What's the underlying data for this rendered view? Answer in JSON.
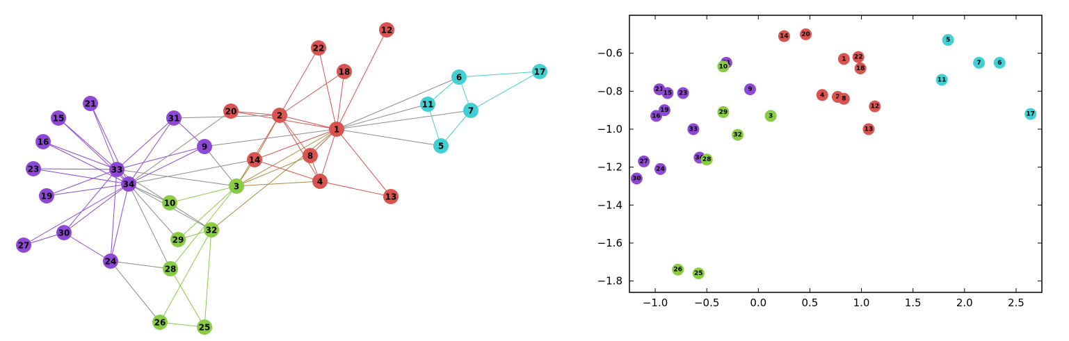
{
  "colors": {
    "red": "#d9534f",
    "cyan": "#42cfd4",
    "purple": "#8f48d6",
    "green": "#88cc44",
    "edge_gray": "#8c8c8c",
    "edge_mixed": "#b0893f"
  },
  "chart_data": [
    {
      "type": "network",
      "nodes": [
        {
          "id": "1",
          "community": "red"
        },
        {
          "id": "2",
          "community": "red"
        },
        {
          "id": "3",
          "community": "green"
        },
        {
          "id": "4",
          "community": "red"
        },
        {
          "id": "5",
          "community": "cyan"
        },
        {
          "id": "6",
          "community": "cyan"
        },
        {
          "id": "7",
          "community": "cyan"
        },
        {
          "id": "8",
          "community": "red"
        },
        {
          "id": "9",
          "community": "purple"
        },
        {
          "id": "10",
          "community": "green"
        },
        {
          "id": "11",
          "community": "cyan"
        },
        {
          "id": "12",
          "community": "red"
        },
        {
          "id": "13",
          "community": "red"
        },
        {
          "id": "14",
          "community": "red"
        },
        {
          "id": "15",
          "community": "purple"
        },
        {
          "id": "16",
          "community": "purple"
        },
        {
          "id": "17",
          "community": "cyan"
        },
        {
          "id": "18",
          "community": "red"
        },
        {
          "id": "19",
          "community": "purple"
        },
        {
          "id": "20",
          "community": "red"
        },
        {
          "id": "21",
          "community": "purple"
        },
        {
          "id": "22",
          "community": "red"
        },
        {
          "id": "23",
          "community": "purple"
        },
        {
          "id": "24",
          "community": "purple"
        },
        {
          "id": "25",
          "community": "green"
        },
        {
          "id": "26",
          "community": "green"
        },
        {
          "id": "27",
          "community": "purple"
        },
        {
          "id": "28",
          "community": "green"
        },
        {
          "id": "29",
          "community": "green"
        },
        {
          "id": "30",
          "community": "purple"
        },
        {
          "id": "31",
          "community": "purple"
        },
        {
          "id": "32",
          "community": "green"
        },
        {
          "id": "33",
          "community": "purple"
        },
        {
          "id": "34",
          "community": "purple"
        }
      ],
      "edges": [
        [
          "1",
          "2"
        ],
        [
          "1",
          "3"
        ],
        [
          "1",
          "4"
        ],
        [
          "1",
          "5"
        ],
        [
          "1",
          "6"
        ],
        [
          "1",
          "7"
        ],
        [
          "1",
          "8"
        ],
        [
          "1",
          "9"
        ],
        [
          "1",
          "11"
        ],
        [
          "1",
          "12"
        ],
        [
          "1",
          "13"
        ],
        [
          "1",
          "14"
        ],
        [
          "1",
          "18"
        ],
        [
          "1",
          "20"
        ],
        [
          "1",
          "22"
        ],
        [
          "1",
          "32"
        ],
        [
          "2",
          "3"
        ],
        [
          "2",
          "4"
        ],
        [
          "2",
          "8"
        ],
        [
          "2",
          "14"
        ],
        [
          "2",
          "18"
        ],
        [
          "2",
          "20"
        ],
        [
          "2",
          "22"
        ],
        [
          "2",
          "31"
        ],
        [
          "3",
          "4"
        ],
        [
          "3",
          "8"
        ],
        [
          "3",
          "9"
        ],
        [
          "3",
          "10"
        ],
        [
          "3",
          "14"
        ],
        [
          "3",
          "28"
        ],
        [
          "3",
          "29"
        ],
        [
          "3",
          "33"
        ],
        [
          "4",
          "8"
        ],
        [
          "4",
          "13"
        ],
        [
          "4",
          "14"
        ],
        [
          "5",
          "7"
        ],
        [
          "5",
          "11"
        ],
        [
          "6",
          "7"
        ],
        [
          "6",
          "11"
        ],
        [
          "6",
          "17"
        ],
        [
          "7",
          "17"
        ],
        [
          "9",
          "31"
        ],
        [
          "9",
          "33"
        ],
        [
          "9",
          "34"
        ],
        [
          "10",
          "34"
        ],
        [
          "14",
          "34"
        ],
        [
          "15",
          "33"
        ],
        [
          "15",
          "34"
        ],
        [
          "16",
          "33"
        ],
        [
          "16",
          "34"
        ],
        [
          "19",
          "33"
        ],
        [
          "19",
          "34"
        ],
        [
          "20",
          "34"
        ],
        [
          "21",
          "33"
        ],
        [
          "21",
          "34"
        ],
        [
          "23",
          "33"
        ],
        [
          "23",
          "34"
        ],
        [
          "24",
          "26"
        ],
        [
          "24",
          "28"
        ],
        [
          "24",
          "30"
        ],
        [
          "24",
          "33"
        ],
        [
          "24",
          "34"
        ],
        [
          "25",
          "26"
        ],
        [
          "25",
          "28"
        ],
        [
          "25",
          "32"
        ],
        [
          "26",
          "32"
        ],
        [
          "27",
          "30"
        ],
        [
          "27",
          "34"
        ],
        [
          "28",
          "34"
        ],
        [
          "29",
          "32"
        ],
        [
          "29",
          "34"
        ],
        [
          "30",
          "33"
        ],
        [
          "30",
          "34"
        ],
        [
          "31",
          "33"
        ],
        [
          "31",
          "34"
        ],
        [
          "32",
          "33"
        ],
        [
          "32",
          "34"
        ],
        [
          "33",
          "34"
        ]
      ]
    },
    {
      "type": "scatter",
      "xlim": [
        -1.25,
        2.75
      ],
      "ylim": [
        -1.86,
        -0.4
      ],
      "xticks": [
        -1.0,
        -0.5,
        0.0,
        0.5,
        1.0,
        1.5,
        2.0,
        2.5
      ],
      "xtick_labels": [
        "−1.0",
        "−0.5",
        "0.0",
        "0.5",
        "1.0",
        "1.5",
        "2.0",
        "2.5"
      ],
      "yticks": [
        -0.6,
        -0.8,
        -1.0,
        -1.2,
        -1.4,
        -1.6,
        -1.8
      ],
      "ytick_labels": [
        "−0.6",
        "−0.8",
        "−1.0",
        "−1.2",
        "−1.4",
        "−1.6",
        "−1.8"
      ],
      "grid": false,
      "points": [
        {
          "label": "14",
          "x": 0.25,
          "y": -0.51,
          "community": "red"
        },
        {
          "label": "20",
          "x": 0.46,
          "y": -0.5,
          "community": "red"
        },
        {
          "label": "1",
          "x": 0.83,
          "y": -0.63,
          "community": "red"
        },
        {
          "label": "22",
          "x": 0.97,
          "y": -0.62,
          "community": "red"
        },
        {
          "label": "18",
          "x": 0.99,
          "y": -0.68,
          "community": "red"
        },
        {
          "label": "4",
          "x": 0.62,
          "y": -0.82,
          "community": "red"
        },
        {
          "label": "2",
          "x": 0.77,
          "y": -0.83,
          "community": "red"
        },
        {
          "label": "8",
          "x": 0.83,
          "y": -0.84,
          "community": "red"
        },
        {
          "label": "12",
          "x": 1.13,
          "y": -0.88,
          "community": "red"
        },
        {
          "label": "13",
          "x": 1.07,
          "y": -1.0,
          "community": "red"
        },
        {
          "label": "5",
          "x": 1.84,
          "y": -0.53,
          "community": "cyan"
        },
        {
          "label": "7",
          "x": 2.14,
          "y": -0.65,
          "community": "cyan"
        },
        {
          "label": "6",
          "x": 2.34,
          "y": -0.65,
          "community": "cyan"
        },
        {
          "label": "11",
          "x": 1.78,
          "y": -0.74,
          "community": "cyan"
        },
        {
          "label": "17",
          "x": 2.64,
          "y": -0.92,
          "community": "cyan"
        },
        {
          "label": "31",
          "x": -0.31,
          "y": -0.65,
          "community": "purple"
        },
        {
          "label": "9",
          "x": -0.08,
          "y": -0.79,
          "community": "purple"
        },
        {
          "label": "21",
          "x": -0.96,
          "y": -0.79,
          "community": "purple"
        },
        {
          "label": "15",
          "x": -0.88,
          "y": -0.81,
          "community": "purple"
        },
        {
          "label": "23",
          "x": -0.73,
          "y": -0.81,
          "community": "purple"
        },
        {
          "label": "16",
          "x": -0.99,
          "y": -0.93,
          "community": "purple"
        },
        {
          "label": "19",
          "x": -0.91,
          "y": -0.9,
          "community": "purple"
        },
        {
          "label": "33",
          "x": -0.63,
          "y": -1.0,
          "community": "purple"
        },
        {
          "label": "34",
          "x": -0.57,
          "y": -1.15,
          "community": "purple"
        },
        {
          "label": "27",
          "x": -1.11,
          "y": -1.17,
          "community": "purple"
        },
        {
          "label": "24",
          "x": -0.95,
          "y": -1.21,
          "community": "purple"
        },
        {
          "label": "30",
          "x": -1.18,
          "y": -1.26,
          "community": "purple"
        },
        {
          "label": "10",
          "x": -0.34,
          "y": -0.67,
          "community": "green"
        },
        {
          "label": "29",
          "x": -0.34,
          "y": -0.91,
          "community": "green"
        },
        {
          "label": "3",
          "x": 0.12,
          "y": -0.93,
          "community": "green"
        },
        {
          "label": "32",
          "x": -0.2,
          "y": -1.03,
          "community": "green"
        },
        {
          "label": "28",
          "x": -0.5,
          "y": -1.16,
          "community": "green"
        },
        {
          "label": "26",
          "x": -0.78,
          "y": -1.74,
          "community": "green"
        },
        {
          "label": "25",
          "x": -0.58,
          "y": -1.76,
          "community": "green"
        }
      ]
    }
  ]
}
